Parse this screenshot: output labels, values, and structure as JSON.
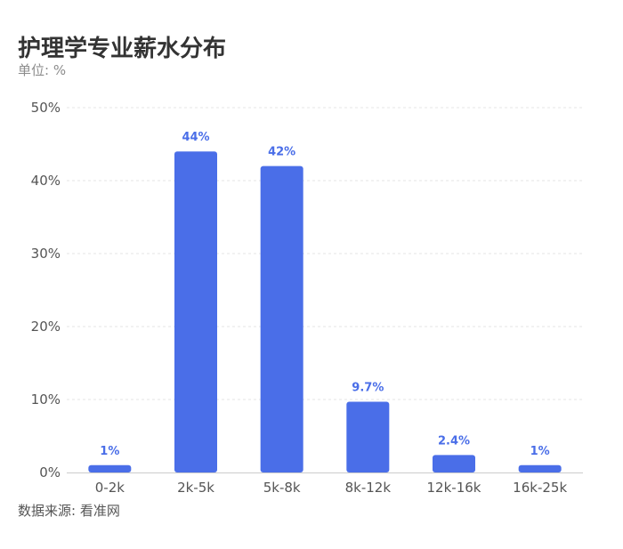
{
  "chart_data": {
    "type": "bar",
    "title": "护理学专业薪水分布",
    "subtitle": "单位: %",
    "source": "数据来源: 看准网",
    "categories": [
      "0-2k",
      "2k-5k",
      "5k-8k",
      "8k-12k",
      "12k-16k",
      "16k-25k"
    ],
    "values": [
      1,
      44,
      42,
      9.7,
      2.4,
      1
    ],
    "data_labels": [
      "1%",
      "44%",
      "42%",
      "9.7%",
      "2.4%",
      "1%"
    ],
    "y_ticks": [
      "0%",
      "10%",
      "20%",
      "30%",
      "40%",
      "50%"
    ],
    "ylim": [
      0,
      50
    ],
    "grid": true,
    "bar_color": "#4a6ee8",
    "label_color": "#4a6ee8"
  }
}
